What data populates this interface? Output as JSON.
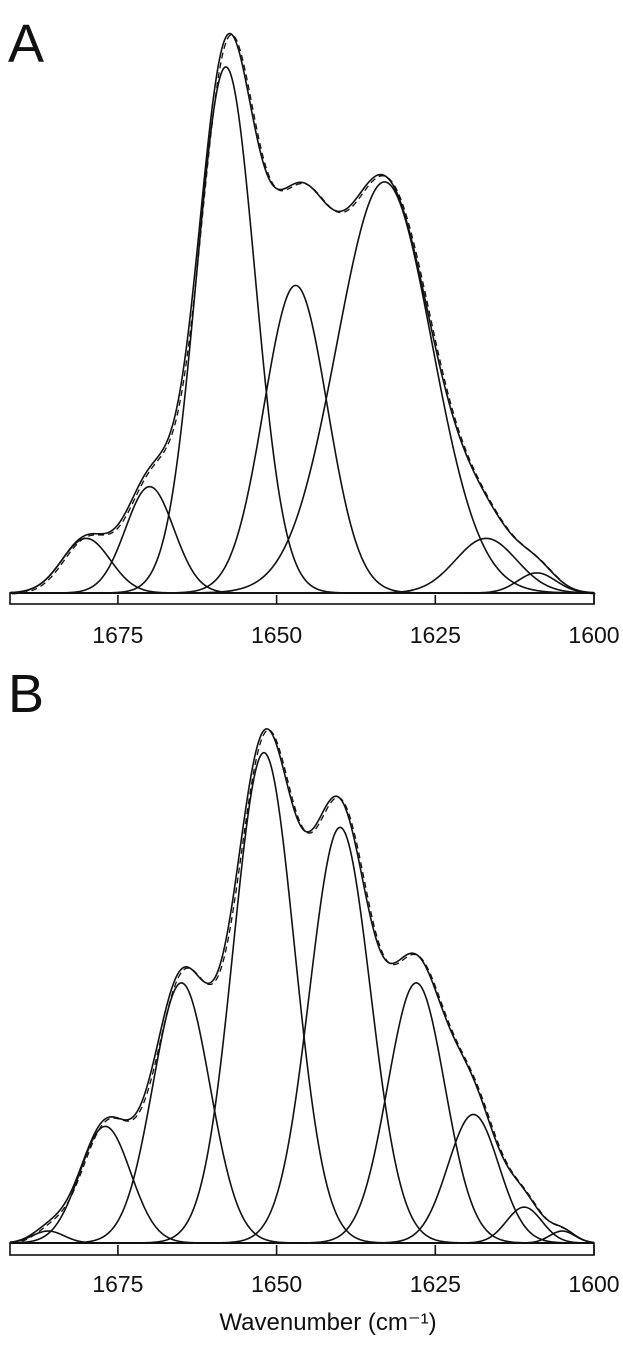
{
  "chart_data": [
    {
      "panel": "A",
      "type": "line",
      "xlabel": "",
      "xlim": [
        1692,
        1600
      ],
      "ylim": [
        0,
        1.0
      ],
      "xticks": [
        1675,
        1650,
        1625,
        1600
      ],
      "components": [
        {
          "center": 1680,
          "height": 0.095,
          "sigma": 3.8
        },
        {
          "center": 1670,
          "height": 0.185,
          "sigma": 3.8
        },
        {
          "center": 1658,
          "height": 0.915,
          "sigma": 4.6
        },
        {
          "center": 1647,
          "height": 0.535,
          "sigma": 5.0
        },
        {
          "center": 1633,
          "height": 0.715,
          "sigma": 7.5
        },
        {
          "center": 1617,
          "height": 0.095,
          "sigma": 4.8
        },
        {
          "center": 1609,
          "height": 0.035,
          "sigma": 3.0
        }
      ]
    },
    {
      "panel": "B",
      "type": "line",
      "xlabel": "Wavenumber (cm⁻¹)",
      "xlim": [
        1692,
        1600
      ],
      "ylim": [
        0,
        1.0
      ],
      "xticks": [
        1675,
        1650,
        1625,
        1600
      ],
      "components": [
        {
          "center": 1686,
          "height": 0.02,
          "sigma": 2.5
        },
        {
          "center": 1677,
          "height": 0.195,
          "sigma": 4.0
        },
        {
          "center": 1665,
          "height": 0.435,
          "sigma": 4.5
        },
        {
          "center": 1652,
          "height": 0.82,
          "sigma": 4.8
        },
        {
          "center": 1640,
          "height": 0.695,
          "sigma": 4.8
        },
        {
          "center": 1628,
          "height": 0.435,
          "sigma": 4.5
        },
        {
          "center": 1619,
          "height": 0.215,
          "sigma": 4.0
        },
        {
          "center": 1611,
          "height": 0.06,
          "sigma": 2.8
        },
        {
          "center": 1605,
          "height": 0.02,
          "sigma": 2.0
        }
      ]
    }
  ]
}
